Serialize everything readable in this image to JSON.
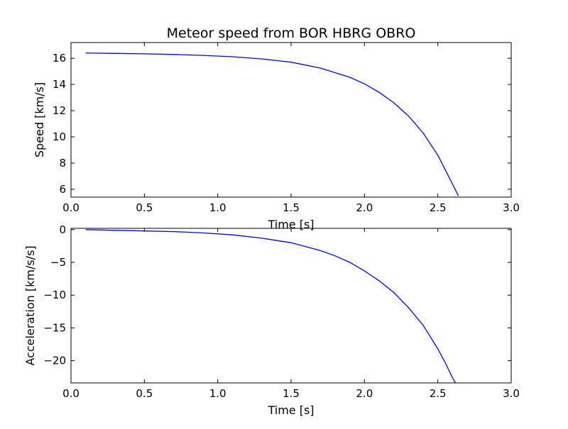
{
  "chart_data": [
    {
      "type": "line",
      "title": "Meteor speed from  BOR HBRG OBRO",
      "xlabel": "Time [s]",
      "ylabel": "Speed [km/s]",
      "xlim": [
        0.0,
        3.0
      ],
      "ylim": [
        5.4,
        17.2
      ],
      "xticks": [
        "0.0",
        "0.5",
        "1.0",
        "1.5",
        "2.0",
        "2.5",
        "3.0"
      ],
      "yticks": [
        "6",
        "8",
        "10",
        "12",
        "14",
        "16"
      ],
      "line_color": "#0000ff",
      "series": [
        {
          "x": [
            0.1,
            0.3,
            0.5,
            0.7,
            0.9,
            1.1,
            1.3,
            1.5,
            1.7,
            1.9,
            2.0,
            2.1,
            2.2,
            2.3,
            2.4,
            2.5,
            2.55,
            2.6,
            2.64
          ],
          "y": [
            16.4,
            16.37,
            16.34,
            16.29,
            16.22,
            16.12,
            15.95,
            15.7,
            15.25,
            14.55,
            14.05,
            13.4,
            12.6,
            11.6,
            10.3,
            8.6,
            7.5,
            6.4,
            5.5
          ]
        }
      ]
    },
    {
      "type": "line",
      "xlabel": "Time [s]",
      "ylabel": "Acceleration [km/s/s]",
      "xlim": [
        0.0,
        3.0
      ],
      "ylim": [
        -23.4,
        0.2
      ],
      "xticks": [
        "0.0",
        "0.5",
        "1.0",
        "1.5",
        "2.0",
        "2.5",
        "3.0"
      ],
      "yticks": [
        "0",
        "−5",
        "−10",
        "−15",
        "−20"
      ],
      "line_color": "#0000ff",
      "series": [
        {
          "x": [
            0.1,
            0.3,
            0.5,
            0.7,
            0.9,
            1.1,
            1.3,
            1.5,
            1.7,
            1.8,
            1.9,
            2.0,
            2.1,
            2.2,
            2.3,
            2.4,
            2.5,
            2.55,
            2.6,
            2.62
          ],
          "y": [
            0.0,
            -0.1,
            -0.2,
            -0.3,
            -0.5,
            -0.8,
            -1.3,
            -2.0,
            -3.2,
            -4.0,
            -5.0,
            -6.3,
            -7.8,
            -9.6,
            -11.9,
            -14.6,
            -18.2,
            -20.3,
            -22.6,
            -23.4
          ]
        }
      ]
    }
  ]
}
